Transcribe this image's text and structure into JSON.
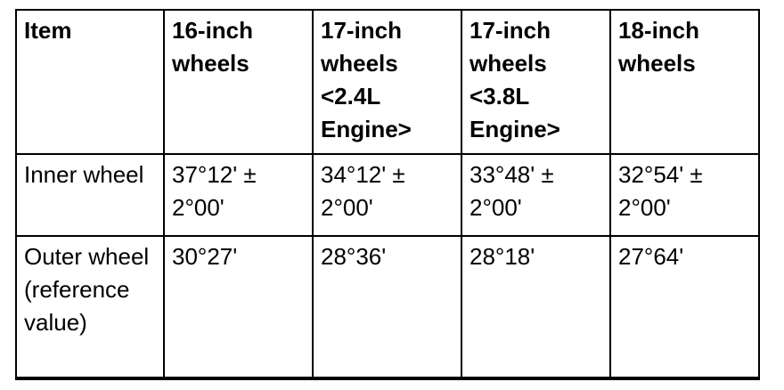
{
  "table": {
    "headers": [
      "Item",
      "16-inch wheels",
      "17-inch wheels <2.4L Engine>",
      "17-inch wheels <3.8L Engine>",
      "18-inch wheels"
    ],
    "rows": [
      [
        "Inner wheel",
        "37°12' ± 2°00'",
        "34°12' ± 2°00'",
        "33°48' ± 2°00'",
        "32°54' ± 2°00'"
      ],
      [
        "Outer wheel (reference value)",
        "30°27'",
        "28°36'",
        "28°18'",
        "27°64'"
      ]
    ]
  }
}
